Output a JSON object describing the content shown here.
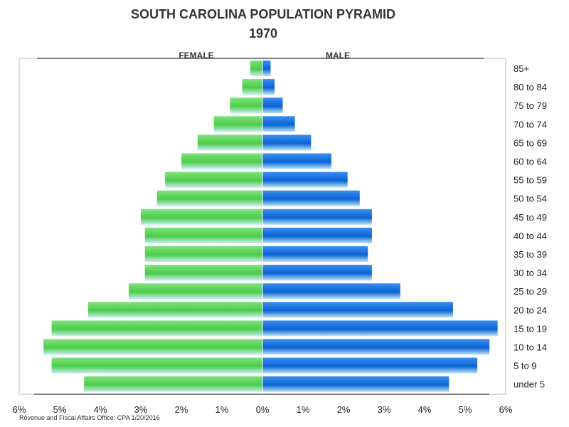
{
  "title": "SOUTH CAROLINA POPULATION PYRAMID",
  "subtitle": "1970",
  "footer": "Revenue and Fiscal Affairs Office: CPA 1/20/2016",
  "colors": {
    "female": "#4ccc4a",
    "male": "#0a63d3",
    "frame": "#bbbbbb"
  },
  "chart_data": {
    "type": "bar",
    "orientation": "horizontal",
    "categories": [
      "85+",
      "80 to 84",
      "75 to 79",
      "70 to 74",
      "65 to 69",
      "60 to 64",
      "55 to 59",
      "50 to 54",
      "45 to 49",
      "40 to 44",
      "35 to 39",
      "30 to 34",
      "25 to 29",
      "20 to 24",
      "15 to 19",
      "10 to 14",
      "5 to 9",
      "under 5"
    ],
    "series": [
      {
        "name": "FEMALE",
        "side": "left",
        "values": [
          0.3,
          0.5,
          0.8,
          1.2,
          1.6,
          2.0,
          2.4,
          2.6,
          3.0,
          2.9,
          2.9,
          2.9,
          3.3,
          4.3,
          5.2,
          5.4,
          5.2,
          4.4
        ]
      },
      {
        "name": "MALE",
        "side": "right",
        "values": [
          0.2,
          0.3,
          0.5,
          0.8,
          1.2,
          1.7,
          2.1,
          2.4,
          2.7,
          2.7,
          2.6,
          2.7,
          3.4,
          4.7,
          5.8,
          5.6,
          5.3,
          4.6
        ]
      }
    ],
    "xlim": [
      -6,
      6
    ],
    "xticks": [
      "6%",
      "5%",
      "4%",
      "3%",
      "2%",
      "1%",
      "0%",
      "1%",
      "2%",
      "3%",
      "4%",
      "5%",
      "6%"
    ],
    "grid": false
  }
}
